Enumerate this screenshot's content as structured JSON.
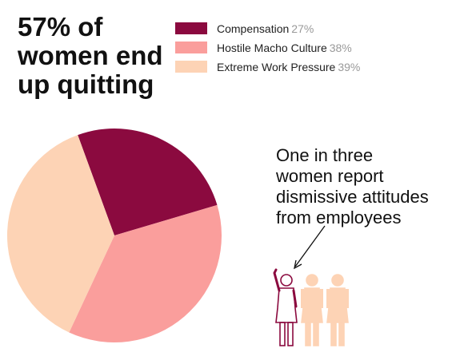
{
  "headline": {
    "lines": [
      "57% of",
      "women end",
      "up quitting"
    ]
  },
  "callout": {
    "lines": [
      "One in three",
      "women report",
      "dismissive attitudes",
      "from employees"
    ]
  },
  "chart_data": {
    "type": "pie",
    "title": "57% of women end up quitting",
    "legend_position": "top-right",
    "slices": [
      {
        "label": "Compensation",
        "value": 27,
        "value_label": "27%",
        "color": "#8b0a3f"
      },
      {
        "label": "Hostile Macho Culture",
        "value": 38,
        "value_label": "38%",
        "color": "#fa9e9c"
      },
      {
        "label": "Extreme Work  Pressure",
        "value": 39,
        "value_label": "39%",
        "color": "#fdd3b5"
      }
    ]
  },
  "figures": {
    "highlight_color": "#8b0a3f",
    "muted_color": "#fdd3b5",
    "count": 3,
    "highlighted_count": 1
  }
}
